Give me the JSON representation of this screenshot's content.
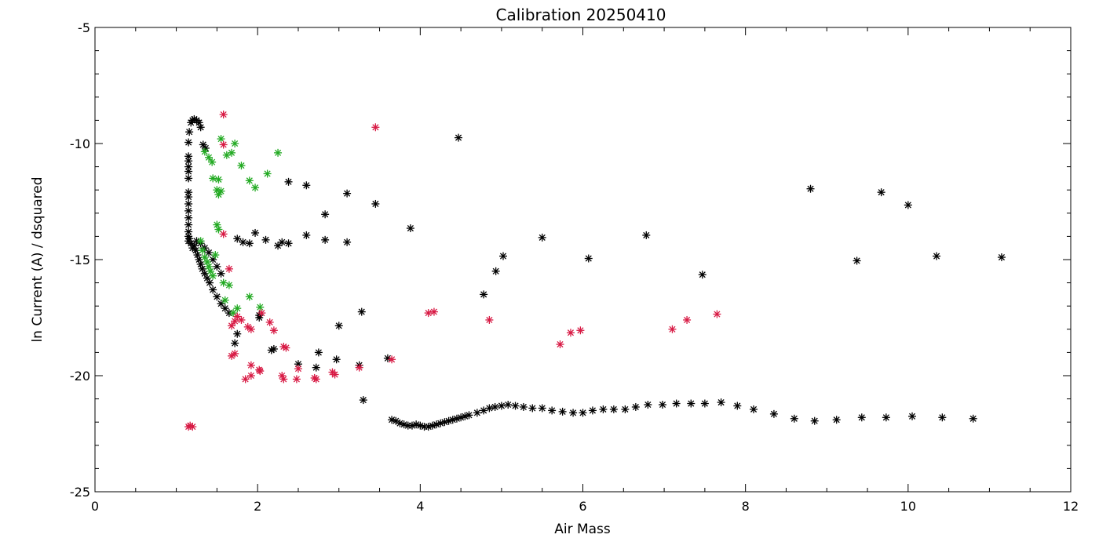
{
  "chart_data": {
    "type": "scatter",
    "title": "Calibration 20250410",
    "xlabel": "Air Mass",
    "ylabel": "ln Current (A) / dsquared",
    "xlim": [
      0,
      12
    ],
    "ylim": [
      -25,
      -5
    ],
    "x_ticks": [
      0,
      2,
      4,
      6,
      8,
      10,
      12
    ],
    "y_ticks": [
      -25,
      -20,
      -15,
      -10,
      -5
    ],
    "x_minor_step": 0.5,
    "y_minor_step": 1,
    "grid": false,
    "legend": "none",
    "marker": "asterisk",
    "series": [
      {
        "color": "#000000",
        "points": [
          [
            1.15,
            -9.95
          ],
          [
            1.16,
            -9.5
          ],
          [
            1.18,
            -9.1
          ],
          [
            1.2,
            -9.0
          ],
          [
            1.22,
            -8.95
          ],
          [
            1.25,
            -9.0
          ],
          [
            1.28,
            -9.1
          ],
          [
            1.3,
            -9.3
          ],
          [
            1.33,
            -10.05
          ],
          [
            1.36,
            -10.2
          ],
          [
            1.15,
            -10.55
          ],
          [
            1.15,
            -10.75
          ],
          [
            1.15,
            -11.0
          ],
          [
            1.15,
            -11.2
          ],
          [
            1.15,
            -11.5
          ],
          [
            1.15,
            -12.1
          ],
          [
            1.15,
            -12.3
          ],
          [
            1.15,
            -12.6
          ],
          [
            1.15,
            -12.9
          ],
          [
            1.15,
            -13.2
          ],
          [
            1.15,
            -13.5
          ],
          [
            1.15,
            -13.8
          ],
          [
            1.15,
            -14.0
          ],
          [
            1.15,
            -14.2
          ],
          [
            1.16,
            -14.1
          ],
          [
            1.18,
            -14.3
          ],
          [
            1.2,
            -14.5
          ],
          [
            1.22,
            -14.4
          ],
          [
            1.24,
            -14.6
          ],
          [
            1.26,
            -14.8
          ],
          [
            1.28,
            -15.0
          ],
          [
            1.3,
            -15.2
          ],
          [
            1.32,
            -15.4
          ],
          [
            1.35,
            -15.6
          ],
          [
            1.38,
            -15.8
          ],
          [
            1.41,
            -16.0
          ],
          [
            1.45,
            -16.3
          ],
          [
            1.5,
            -16.6
          ],
          [
            1.55,
            -16.9
          ],
          [
            1.6,
            -17.1
          ],
          [
            1.65,
            -17.3
          ],
          [
            1.25,
            -14.2
          ],
          [
            1.3,
            -14.3
          ],
          [
            1.35,
            -14.5
          ],
          [
            1.4,
            -14.7
          ],
          [
            1.45,
            -15.0
          ],
          [
            1.5,
            -15.3
          ],
          [
            1.55,
            -15.6
          ],
          [
            1.72,
            -18.6
          ],
          [
            1.75,
            -18.2
          ],
          [
            1.75,
            -14.1
          ],
          [
            1.82,
            -14.25
          ],
          [
            1.9,
            -14.3
          ],
          [
            1.97,
            -13.85
          ],
          [
            2.02,
            -17.5
          ],
          [
            2.02,
            -17.4
          ],
          [
            2.1,
            -14.15
          ],
          [
            2.17,
            -18.9
          ],
          [
            2.2,
            -18.85
          ],
          [
            2.25,
            -14.4
          ],
          [
            2.3,
            -14.25
          ],
          [
            2.38,
            -14.3
          ],
          [
            2.38,
            -11.65
          ],
          [
            2.5,
            -19.5
          ],
          [
            2.6,
            -13.95
          ],
          [
            2.6,
            -11.8
          ],
          [
            2.72,
            -19.65
          ],
          [
            2.75,
            -19.0
          ],
          [
            2.83,
            -14.15
          ],
          [
            2.83,
            -13.05
          ],
          [
            2.97,
            -19.3
          ],
          [
            3.0,
            -17.85
          ],
          [
            3.1,
            -14.25
          ],
          [
            3.1,
            -12.15
          ],
          [
            3.25,
            -19.55
          ],
          [
            3.28,
            -17.25
          ],
          [
            3.3,
            -21.05
          ],
          [
            3.45,
            -12.6
          ],
          [
            3.6,
            -19.25
          ],
          [
            3.88,
            -13.65
          ],
          [
            4.47,
            -9.75
          ],
          [
            4.78,
            -16.5
          ],
          [
            4.93,
            -15.5
          ],
          [
            5.02,
            -14.85
          ],
          [
            5.5,
            -14.05
          ],
          [
            6.07,
            -14.95
          ],
          [
            6.78,
            -13.95
          ],
          [
            7.47,
            -15.65
          ],
          [
            8.8,
            -11.95
          ],
          [
            9.37,
            -15.05
          ],
          [
            9.67,
            -12.1
          ],
          [
            10.0,
            -12.65
          ],
          [
            10.35,
            -14.85
          ],
          [
            11.15,
            -14.9
          ],
          [
            3.65,
            -21.9
          ],
          [
            3.7,
            -21.95
          ],
          [
            3.75,
            -22.05
          ],
          [
            3.8,
            -22.1
          ],
          [
            3.85,
            -22.15
          ],
          [
            3.9,
            -22.15
          ],
          [
            3.95,
            -22.1
          ],
          [
            4.0,
            -22.15
          ],
          [
            4.05,
            -22.2
          ],
          [
            4.1,
            -22.2
          ],
          [
            4.15,
            -22.15
          ],
          [
            4.2,
            -22.1
          ],
          [
            4.25,
            -22.05
          ],
          [
            4.3,
            -22.0
          ],
          [
            4.35,
            -21.95
          ],
          [
            4.4,
            -21.9
          ],
          [
            4.45,
            -21.85
          ],
          [
            4.5,
            -21.8
          ],
          [
            4.55,
            -21.75
          ],
          [
            4.6,
            -21.7
          ],
          [
            4.7,
            -21.6
          ],
          [
            4.78,
            -21.5
          ],
          [
            4.85,
            -21.4
          ],
          [
            4.92,
            -21.35
          ],
          [
            5.0,
            -21.3
          ],
          [
            5.08,
            -21.25
          ],
          [
            5.17,
            -21.3
          ],
          [
            5.27,
            -21.35
          ],
          [
            5.38,
            -21.4
          ],
          [
            5.5,
            -21.4
          ],
          [
            5.62,
            -21.5
          ],
          [
            5.75,
            -21.55
          ],
          [
            5.88,
            -21.6
          ],
          [
            6.0,
            -21.6
          ],
          [
            6.12,
            -21.5
          ],
          [
            6.25,
            -21.45
          ],
          [
            6.38,
            -21.45
          ],
          [
            6.52,
            -21.45
          ],
          [
            6.65,
            -21.35
          ],
          [
            6.8,
            -21.25
          ],
          [
            6.98,
            -21.25
          ],
          [
            7.15,
            -21.2
          ],
          [
            7.33,
            -21.2
          ],
          [
            7.5,
            -21.2
          ],
          [
            7.7,
            -21.15
          ],
          [
            7.9,
            -21.3
          ],
          [
            8.1,
            -21.45
          ],
          [
            8.35,
            -21.65
          ],
          [
            8.6,
            -21.85
          ],
          [
            8.85,
            -21.95
          ],
          [
            9.12,
            -21.9
          ],
          [
            9.43,
            -21.8
          ],
          [
            9.73,
            -21.8
          ],
          [
            10.05,
            -21.75
          ],
          [
            10.42,
            -21.8
          ],
          [
            10.8,
            -21.85
          ]
        ]
      },
      {
        "color": "#22aa22",
        "points": [
          [
            1.3,
            -14.2
          ],
          [
            1.32,
            -14.6
          ],
          [
            1.35,
            -14.9
          ],
          [
            1.38,
            -15.1
          ],
          [
            1.4,
            -15.3
          ],
          [
            1.42,
            -15.5
          ],
          [
            1.45,
            -15.7
          ],
          [
            1.48,
            -14.8
          ],
          [
            1.35,
            -10.35
          ],
          [
            1.4,
            -10.6
          ],
          [
            1.44,
            -10.8
          ],
          [
            1.45,
            -11.5
          ],
          [
            1.52,
            -11.55
          ],
          [
            1.5,
            -12.0
          ],
          [
            1.52,
            -12.2
          ],
          [
            1.55,
            -12.05
          ],
          [
            1.55,
            -9.8
          ],
          [
            1.62,
            -10.5
          ],
          [
            1.68,
            -10.4
          ],
          [
            1.72,
            -10.0
          ],
          [
            1.8,
            -10.95
          ],
          [
            1.9,
            -11.6
          ],
          [
            1.97,
            -11.9
          ],
          [
            2.12,
            -11.3
          ],
          [
            2.25,
            -10.4
          ],
          [
            1.5,
            -13.5
          ],
          [
            1.52,
            -13.7
          ],
          [
            1.58,
            -16.0
          ],
          [
            1.65,
            -16.1
          ],
          [
            1.6,
            -16.75
          ],
          [
            1.7,
            -17.3
          ],
          [
            1.75,
            -17.1
          ],
          [
            1.9,
            -16.6
          ],
          [
            2.03,
            -17.05
          ]
        ]
      },
      {
        "color": "#d81b45",
        "points": [
          [
            1.15,
            -22.2
          ],
          [
            1.17,
            -22.15
          ],
          [
            1.2,
            -22.2
          ],
          [
            1.58,
            -8.75
          ],
          [
            1.58,
            -10.05
          ],
          [
            1.58,
            -13.9
          ],
          [
            1.65,
            -15.4
          ],
          [
            1.68,
            -17.85
          ],
          [
            1.72,
            -17.65
          ],
          [
            1.75,
            -17.45
          ],
          [
            1.8,
            -17.6
          ],
          [
            1.72,
            -19.05
          ],
          [
            1.68,
            -19.15
          ],
          [
            1.85,
            -20.15
          ],
          [
            1.88,
            -17.9
          ],
          [
            1.92,
            -18.0
          ],
          [
            1.92,
            -19.55
          ],
          [
            1.92,
            -20.0
          ],
          [
            2.02,
            -19.75
          ],
          [
            2.03,
            -19.8
          ],
          [
            2.05,
            -17.3
          ],
          [
            2.15,
            -17.7
          ],
          [
            2.2,
            -18.05
          ],
          [
            2.32,
            -18.75
          ],
          [
            2.35,
            -18.8
          ],
          [
            2.3,
            -20.0
          ],
          [
            2.32,
            -20.15
          ],
          [
            2.48,
            -20.15
          ],
          [
            2.5,
            -19.7
          ],
          [
            2.7,
            -20.1
          ],
          [
            2.72,
            -20.15
          ],
          [
            2.92,
            -19.85
          ],
          [
            2.95,
            -19.95
          ],
          [
            3.25,
            -19.65
          ],
          [
            3.45,
            -9.3
          ],
          [
            3.65,
            -19.3
          ],
          [
            4.1,
            -17.3
          ],
          [
            4.17,
            -17.25
          ],
          [
            4.85,
            -17.6
          ],
          [
            5.72,
            -18.65
          ],
          [
            5.85,
            -18.15
          ],
          [
            5.97,
            -18.05
          ],
          [
            7.1,
            -18.0
          ],
          [
            7.28,
            -17.6
          ],
          [
            7.65,
            -17.35
          ]
        ]
      }
    ]
  }
}
